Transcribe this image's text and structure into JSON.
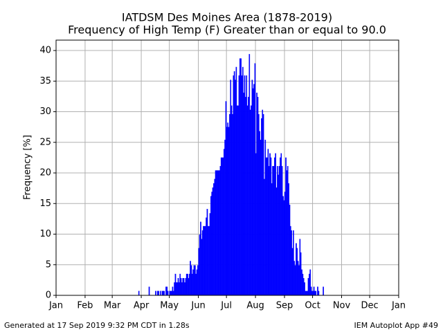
{
  "chart_data": {
    "type": "bar",
    "title": "IATDSM Des Moines Area (1878-2019)",
    "subtitle": "Frequency of High Temp (F) Greater than or equal to 90.0",
    "ylabel": "Frequency [%]",
    "footer_left": "Generated at 17 Sep 2019 9:32 PM CDT in 1.28s",
    "footer_right": "IEM Autoplot App #49",
    "color": "#0000ff",
    "grid": true,
    "xlim": [
      0,
      366
    ],
    "ylim": [
      0,
      41.7
    ],
    "yticks": [
      0,
      5,
      10,
      15,
      20,
      25,
      30,
      35,
      40
    ],
    "xticks": [
      {
        "value": 0,
        "label": "Jan"
      },
      {
        "value": 31,
        "label": "Feb"
      },
      {
        "value": 60,
        "label": "Mar"
      },
      {
        "value": 91,
        "label": "Apr"
      },
      {
        "value": 121,
        "label": "May"
      },
      {
        "value": 152,
        "label": "Jun"
      },
      {
        "value": 182,
        "label": "Jul"
      },
      {
        "value": 213,
        "label": "Aug"
      },
      {
        "value": 244,
        "label": "Sep"
      },
      {
        "value": 274,
        "label": "Oct"
      },
      {
        "value": 305,
        "label": "Nov"
      },
      {
        "value": 335,
        "label": "Dec"
      },
      {
        "value": 366,
        "label": "Jan"
      }
    ],
    "x": [
      88,
      89,
      90,
      91,
      92,
      93,
      94,
      95,
      96,
      97,
      98,
      99,
      100,
      101,
      102,
      103,
      104,
      105,
      106,
      107,
      108,
      109,
      110,
      111,
      112,
      113,
      114,
      115,
      116,
      117,
      118,
      119,
      120,
      121,
      122,
      123,
      124,
      125,
      126,
      127,
      128,
      129,
      130,
      131,
      132,
      133,
      134,
      135,
      136,
      137,
      138,
      139,
      140,
      141,
      142,
      143,
      144,
      145,
      146,
      147,
      148,
      149,
      150,
      151,
      152,
      153,
      154,
      155,
      156,
      157,
      158,
      159,
      160,
      161,
      162,
      163,
      164,
      165,
      166,
      167,
      168,
      169,
      170,
      171,
      172,
      173,
      174,
      175,
      176,
      177,
      178,
      179,
      180,
      181,
      182,
      183,
      184,
      185,
      186,
      187,
      188,
      189,
      190,
      191,
      192,
      193,
      194,
      195,
      196,
      197,
      198,
      199,
      200,
      201,
      202,
      203,
      204,
      205,
      206,
      207,
      208,
      209,
      210,
      211,
      212,
      213,
      214,
      215,
      216,
      217,
      218,
      219,
      220,
      221,
      222,
      223,
      224,
      225,
      226,
      227,
      228,
      229,
      230,
      231,
      232,
      233,
      234,
      235,
      236,
      237,
      238,
      239,
      240,
      241,
      242,
      243,
      244,
      245,
      246,
      247,
      248,
      249,
      250,
      251,
      252,
      253,
      254,
      255,
      256,
      257,
      258,
      259,
      260,
      261,
      262,
      263,
      264,
      265,
      266,
      267,
      268,
      269,
      270,
      271,
      272,
      273,
      274,
      275,
      276,
      277,
      278,
      279,
      280,
      281,
      282,
      283,
      284,
      285
    ],
    "values": [
      0.7,
      0,
      0,
      0,
      0,
      0,
      0,
      0,
      0,
      0,
      0,
      1.4,
      0,
      0,
      0,
      0,
      0,
      0,
      0.7,
      0,
      0.7,
      0.7,
      0,
      0.7,
      0,
      0.7,
      0.7,
      0.7,
      0,
      1.4,
      1.4,
      0.7,
      0,
      0.7,
      0.7,
      0.7,
      1.4,
      0.7,
      2.1,
      3.5,
      2.1,
      2.1,
      2.8,
      2.1,
      3.5,
      2.8,
      2.1,
      2.8,
      2.8,
      2.1,
      2.8,
      3.5,
      3.5,
      2.8,
      3.5,
      5.6,
      4.9,
      3.5,
      4.2,
      4.9,
      4.9,
      3.5,
      4.2,
      4.9,
      7.7,
      9.9,
      12.0,
      9.2,
      10.6,
      11.3,
      11.3,
      11.3,
      12.7,
      14.1,
      11.3,
      11.3,
      13.4,
      16.2,
      16.9,
      17.6,
      18.3,
      19.0,
      20.4,
      20.4,
      20.4,
      20.4,
      20.4,
      21.1,
      22.5,
      22.5,
      22.5,
      23.9,
      25.4,
      31.7,
      27.5,
      28.2,
      27.5,
      29.6,
      35.2,
      31.0,
      29.6,
      35.9,
      36.6,
      35.2,
      37.3,
      31.0,
      31.0,
      35.9,
      38.7,
      38.7,
      35.9,
      37.3,
      33.1,
      35.9,
      32.4,
      35.9,
      31.0,
      32.4,
      39.4,
      30.3,
      31.0,
      35.2,
      33.8,
      34.5,
      37.9,
      23.2,
      33.1,
      32.4,
      29.6,
      26.8,
      25.4,
      28.9,
      30.3,
      29.6,
      19.0,
      25.4,
      22.5,
      22.5,
      23.9,
      21.1,
      23.2,
      22.5,
      18.3,
      21.1,
      21.1,
      22.5,
      23.2,
      17.6,
      21.1,
      19.7,
      21.1,
      22.5,
      23.2,
      21.1,
      16.2,
      15.5,
      16.9,
      22.5,
      20.4,
      21.1,
      18.3,
      14.8,
      11.3,
      10.6,
      7.7,
      10.6,
      5.6,
      4.9,
      8.5,
      7.7,
      5.6,
      4.9,
      9.2,
      7.0,
      4.2,
      3.5,
      2.8,
      2.1,
      0.7,
      0.7,
      0.7,
      2.8,
      3.5,
      4.2,
      1.4,
      0.7,
      0.7,
      1.4,
      0.7,
      0.7,
      0,
      1.4,
      0.7,
      0,
      0,
      0,
      0,
      1.4
    ]
  }
}
